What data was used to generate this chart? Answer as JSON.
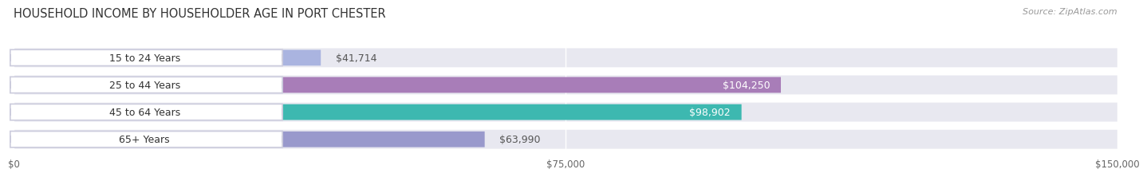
{
  "title": "HOUSEHOLD INCOME BY HOUSEHOLDER AGE IN PORT CHESTER",
  "source": "Source: ZipAtlas.com",
  "categories": [
    "15 to 24 Years",
    "25 to 44 Years",
    "45 to 64 Years",
    "65+ Years"
  ],
  "values": [
    41714,
    104250,
    98902,
    63990
  ],
  "bar_colors": [
    "#aab4e0",
    "#a87db8",
    "#3db8b0",
    "#9999cc"
  ],
  "value_labels": [
    "$41,714",
    "$104,250",
    "$98,902",
    "$63,990"
  ],
  "xlim": [
    0,
    150000
  ],
  "xticks": [
    0,
    75000,
    150000
  ],
  "xtick_labels": [
    "$0",
    "$75,000",
    "$150,000"
  ],
  "background_color": "#ffffff",
  "bar_background_color": "#e8e8f0",
  "title_fontsize": 10.5,
  "source_fontsize": 8,
  "label_fontsize": 9,
  "tick_fontsize": 8.5,
  "value_label_inside_color": "white",
  "value_label_outside_color": "#555555",
  "category_label_color": "#333333",
  "pill_bg_color": "#ffffff",
  "pill_border_color": "#ccccdd"
}
